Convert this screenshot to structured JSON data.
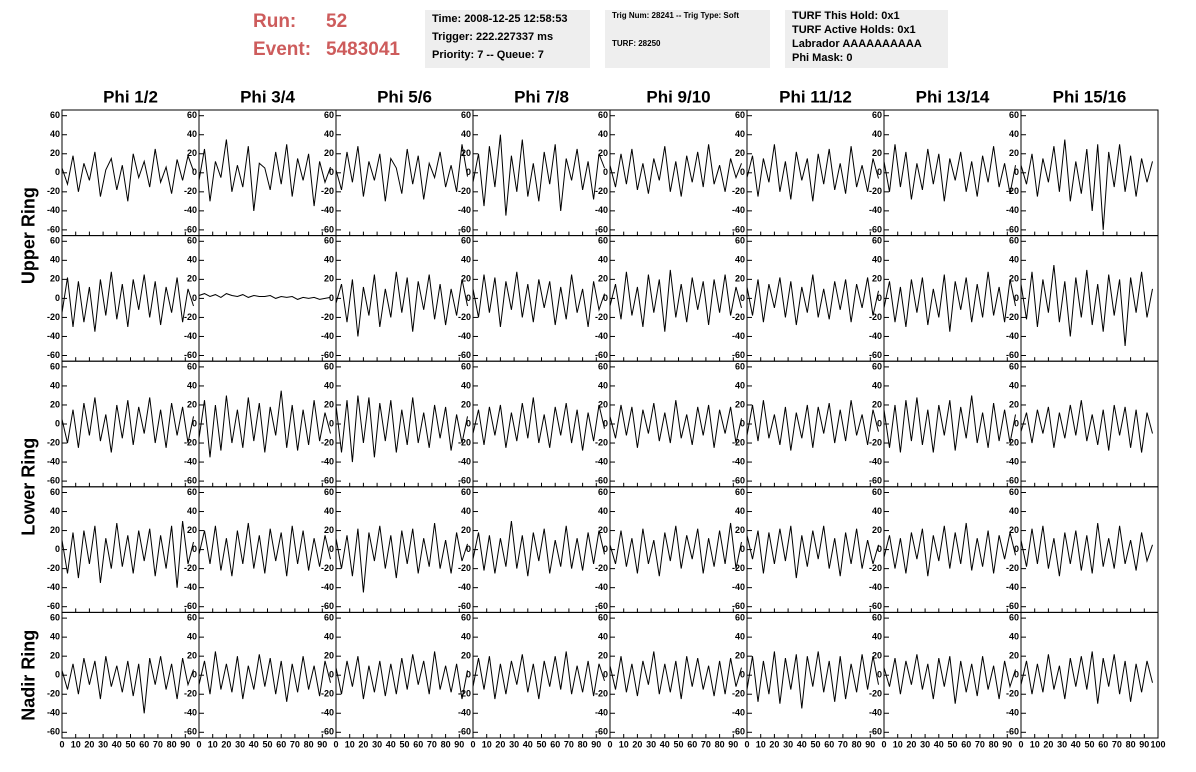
{
  "header": {
    "run_label": "Run:",
    "run": 52,
    "event_label": "Event:",
    "event": 5483041
  },
  "info": [
    [
      "Time: 2008-12-25 12:58:53",
      "Trigger: 222.227337 ms",
      "Priority: 7 -- Queue: 7"
    ],
    [
      "Trig Num: 28241 -- Trig Type: Soft",
      "TURF: 28250"
    ],
    [
      "TURF This Hold: 0x1",
      "TURF Active Holds: 0x1",
      "Labrador AAAAAAAAAA",
      "Phi Mask: 0"
    ]
  ],
  "chart_data": {
    "type": "line",
    "color": "#000000",
    "columns": [
      "Phi 1/2",
      "Phi 3/4",
      "Phi 5/6",
      "Phi 7/8",
      "Phi 9/10",
      "Phi 11/12",
      "Phi 13/14",
      "Phi 15/16"
    ],
    "rows": [
      "Upper Ring",
      "Lower Ring",
      "Nadir Ring"
    ],
    "xlim": [
      0,
      100
    ],
    "ylim": [
      -66,
      66
    ],
    "xticks": [
      0,
      10,
      20,
      30,
      40,
      50,
      60,
      70,
      80,
      90,
      100
    ],
    "yticks": [
      -60,
      -40,
      -20,
      0,
      20,
      40,
      60
    ],
    "x": [
      0,
      4,
      8,
      12,
      16,
      20,
      24,
      28,
      32,
      36,
      40,
      44,
      48,
      52,
      56,
      60,
      64,
      68,
      72,
      76,
      80,
      84,
      88,
      92,
      96
    ],
    "panels": [
      {
        "values": [
          5,
          -12,
          18,
          -20,
          10,
          -8,
          22,
          -25,
          3,
          15,
          -18,
          8,
          -30,
          20,
          -5,
          12,
          -15,
          25,
          -10,
          6,
          -22,
          14,
          -8,
          18,
          2
        ]
      },
      {
        "values": [
          -8,
          25,
          -30,
          12,
          -5,
          35,
          -20,
          8,
          -15,
          28,
          -40,
          10,
          5,
          -18,
          22,
          -12,
          30,
          -25,
          15,
          -8,
          20,
          -35,
          12,
          -10,
          6
        ]
      },
      {
        "values": [
          3,
          -18,
          22,
          -10,
          28,
          -25,
          12,
          -8,
          20,
          -30,
          15,
          5,
          -22,
          25,
          -12,
          18,
          -28,
          10,
          -5,
          22,
          -15,
          8,
          -20,
          30,
          -4
        ]
      },
      {
        "values": [
          -10,
          20,
          -35,
          28,
          -15,
          40,
          -45,
          18,
          -20,
          35,
          -25,
          10,
          -30,
          22,
          -12,
          30,
          -40,
          15,
          -8,
          25,
          -18,
          12,
          -28,
          20,
          5
        ]
      },
      {
        "values": [
          8,
          -15,
          20,
          -12,
          25,
          -18,
          10,
          -22,
          15,
          -8,
          28,
          -20,
          12,
          -25,
          18,
          -10,
          22,
          -15,
          30,
          -12,
          8,
          -20,
          15,
          -5,
          10
        ]
      },
      {
        "values": [
          -5,
          18,
          -25,
          15,
          -10,
          30,
          -20,
          12,
          -28,
          22,
          -8,
          15,
          -30,
          20,
          -12,
          25,
          -18,
          10,
          -22,
          28,
          -15,
          8,
          -20,
          15,
          -6
        ]
      },
      {
        "values": [
          12,
          -20,
          30,
          -15,
          22,
          -28,
          10,
          -18,
          25,
          -12,
          20,
          -30,
          15,
          -8,
          22,
          -20,
          12,
          -25,
          18,
          -10,
          28,
          -15,
          10,
          -22,
          8
        ]
      },
      {
        "values": [
          8,
          -12,
          20,
          -25,
          15,
          -10,
          28,
          -20,
          35,
          -30,
          12,
          -22,
          25,
          -40,
          30,
          -60,
          22,
          -15,
          30,
          -20,
          18,
          -25,
          15,
          -10,
          12
        ]
      },
      {
        "values": [
          -15,
          22,
          -30,
          18,
          -25,
          12,
          -35,
          20,
          -18,
          28,
          -22,
          15,
          -30,
          20,
          -12,
          25,
          -20,
          18,
          -28,
          12,
          -15,
          22,
          -25,
          10,
          -8
        ]
      },
      {
        "values": [
          3,
          5,
          2,
          4,
          1,
          5,
          3,
          2,
          4,
          1,
          3,
          2,
          2,
          3,
          0,
          2,
          1,
          2,
          -1,
          1,
          0,
          1,
          -1,
          0,
          1
        ]
      },
      {
        "values": [
          -5,
          15,
          -25,
          20,
          -40,
          12,
          -18,
          25,
          -30,
          10,
          -20,
          28,
          -15,
          22,
          -35,
          18,
          -12,
          25,
          -22,
          15,
          -28,
          10,
          -18,
          20,
          -8
        ]
      },
      {
        "values": [
          10,
          -20,
          25,
          -15,
          22,
          -30,
          18,
          -12,
          28,
          -20,
          15,
          -25,
          20,
          -10,
          18,
          -28,
          12,
          -22,
          25,
          -15,
          10,
          -30,
          18,
          -12,
          5
        ]
      },
      {
        "values": [
          -8,
          15,
          -22,
          28,
          -18,
          12,
          -30,
          25,
          -15,
          20,
          -35,
          30,
          -20,
          15,
          -25,
          22,
          -12,
          18,
          -28,
          20,
          -15,
          25,
          -18,
          12,
          -10
        ]
      },
      {
        "values": [
          12,
          -18,
          20,
          -25,
          15,
          -10,
          22,
          -20,
          18,
          -28,
          12,
          -15,
          25,
          -20,
          10,
          -22,
          18,
          -12,
          20,
          -25,
          15,
          -10,
          22,
          -18,
          8
        ]
      },
      {
        "values": [
          -10,
          18,
          -25,
          12,
          -30,
          20,
          -15,
          22,
          -28,
          10,
          -20,
          25,
          -35,
          18,
          -12,
          22,
          -25,
          15,
          -20,
          28,
          -18,
          12,
          -25,
          20,
          -8
        ]
      },
      {
        "values": [
          15,
          -22,
          28,
          -30,
          20,
          -15,
          35,
          -25,
          18,
          -40,
          22,
          -20,
          30,
          -28,
          15,
          -35,
          25,
          -18,
          20,
          -50,
          22,
          -15,
          28,
          -20,
          10
        ]
      },
      {
        "values": [
          5,
          -20,
          15,
          -25,
          22,
          -12,
          28,
          -18,
          10,
          -30,
          20,
          -15,
          25,
          -22,
          18,
          -10,
          28,
          -20,
          15,
          -25,
          22,
          -12,
          18,
          -20,
          8
        ]
      },
      {
        "values": [
          -15,
          25,
          -35,
          20,
          -28,
          30,
          -20,
          15,
          -25,
          28,
          -18,
          22,
          -30,
          18,
          -12,
          35,
          -25,
          20,
          -28,
          15,
          -22,
          25,
          -18,
          12,
          -10
        ]
      },
      {
        "values": [
          20,
          -30,
          25,
          -40,
          30,
          -20,
          28,
          -35,
          22,
          -18,
          25,
          -30,
          15,
          -22,
          28,
          -20,
          12,
          -25,
          20,
          -15,
          18,
          -28,
          10,
          -20,
          8
        ]
      },
      {
        "values": [
          -10,
          15,
          -22,
          18,
          -12,
          20,
          -25,
          12,
          -18,
          22,
          -15,
          28,
          -20,
          10,
          -25,
          18,
          -12,
          22,
          -20,
          15,
          -28,
          12,
          -18,
          20,
          -5
        ]
      },
      {
        "values": [
          8,
          -15,
          20,
          -12,
          18,
          -25,
          15,
          -10,
          22,
          -18,
          12,
          -20,
          25,
          -15,
          10,
          -22,
          18,
          -12,
          20,
          -25,
          15,
          -10,
          18,
          -20,
          6
        ]
      },
      {
        "values": [
          -12,
          20,
          -18,
          25,
          -15,
          10,
          -22,
          18,
          -28,
          12,
          -15,
          20,
          -25,
          18,
          -10,
          22,
          -20,
          15,
          -18,
          25,
          -12,
          10,
          -22,
          15,
          -8
        ]
      },
      {
        "values": [
          15,
          -25,
          20,
          -30,
          25,
          -18,
          28,
          -22,
          15,
          -30,
          20,
          -12,
          25,
          -28,
          18,
          -15,
          30,
          -20,
          12,
          -25,
          22,
          -18,
          15,
          -20,
          10
        ]
      },
      {
        "values": [
          -8,
          12,
          -20,
          15,
          -10,
          18,
          -25,
          12,
          -15,
          20,
          -12,
          25,
          -18,
          10,
          -22,
          15,
          -28,
          20,
          -12,
          18,
          -25,
          15,
          -30,
          12,
          -10
        ]
      },
      {
        "values": [
          10,
          -25,
          18,
          -30,
          20,
          -15,
          25,
          -35,
          12,
          -20,
          28,
          -18,
          15,
          -25,
          20,
          -12,
          22,
          -28,
          15,
          -20,
          25,
          -40,
          30,
          -15,
          8
        ]
      },
      {
        "values": [
          -5,
          20,
          -15,
          25,
          -22,
          12,
          -28,
          20,
          -15,
          28,
          -20,
          15,
          -25,
          22,
          -12,
          18,
          -28,
          25,
          -15,
          20,
          -22,
          12,
          -18,
          15,
          -10
        ]
      },
      {
        "values": [
          12,
          -20,
          15,
          -28,
          22,
          -45,
          18,
          -12,
          25,
          -20,
          15,
          -30,
          20,
          -15,
          22,
          -25,
          12,
          -18,
          28,
          -20,
          10,
          -25,
          18,
          -12,
          6
        ]
      },
      {
        "values": [
          -10,
          18,
          -22,
          15,
          -25,
          12,
          -18,
          30,
          -20,
          15,
          -28,
          18,
          -12,
          22,
          -25,
          10,
          -18,
          25,
          -20,
          12,
          -22,
          18,
          -15,
          20,
          -5
        ]
      },
      {
        "values": [
          5,
          -15,
          20,
          -18,
          12,
          -25,
          22,
          -15,
          10,
          -28,
          18,
          -12,
          25,
          -20,
          15,
          -10,
          22,
          -25,
          12,
          -18,
          20,
          -15,
          28,
          -20,
          8
        ]
      },
      {
        "values": [
          15,
          -10,
          20,
          -25,
          18,
          -15,
          22,
          -12,
          25,
          -30,
          15,
          -18,
          20,
          -10,
          25,
          -20,
          12,
          -28,
          18,
          -15,
          22,
          -20,
          10,
          -15,
          5
        ]
      },
      {
        "values": [
          -8,
          15,
          -20,
          12,
          -25,
          18,
          -10,
          22,
          -28,
          15,
          -12,
          25,
          -20,
          18,
          -15,
          28,
          -22,
          12,
          -18,
          20,
          -25,
          15,
          -10,
          18,
          -6
        ]
      },
      {
        "values": [
          10,
          -18,
          22,
          -15,
          25,
          -20,
          12,
          -28,
          18,
          -15,
          20,
          -22,
          15,
          -25,
          28,
          -18,
          12,
          -20,
          25,
          -15,
          10,
          -22,
          18,
          -12,
          5
        ]
      },
      {
        "values": [
          5,
          -15,
          12,
          -20,
          18,
          -10,
          15,
          -25,
          20,
          -12,
          10,
          -18,
          15,
          -22,
          12,
          -40,
          18,
          -10,
          20,
          -15,
          12,
          -25,
          18,
          -10,
          6
        ]
      },
      {
        "values": [
          -10,
          15,
          -20,
          25,
          -15,
          12,
          -18,
          20,
          -25,
          10,
          -15,
          22,
          -12,
          18,
          -20,
          15,
          -28,
          12,
          -18,
          20,
          -15,
          10,
          -22,
          15,
          -8
        ]
      },
      {
        "values": [
          8,
          -20,
          15,
          -12,
          20,
          -25,
          10,
          -18,
          15,
          -22,
          12,
          -20,
          18,
          -15,
          22,
          -10,
          15,
          -20,
          25,
          -15,
          10,
          -18,
          12,
          -25,
          5
        ]
      },
      {
        "values": [
          -12,
          18,
          -15,
          20,
          -25,
          12,
          -20,
          15,
          -10,
          22,
          -18,
          12,
          -25,
          15,
          -12,
          20,
          -15,
          25,
          -20,
          10,
          -18,
          15,
          -22,
          12,
          -6
        ]
      },
      {
        "values": [
          10,
          -15,
          20,
          -18,
          12,
          -22,
          15,
          -10,
          25,
          -20,
          12,
          -18,
          15,
          -25,
          20,
          -12,
          18,
          -15,
          10,
          -22,
          15,
          -20,
          18,
          -12,
          8
        ]
      },
      {
        "values": [
          -15,
          20,
          -28,
          15,
          -20,
          25,
          -30,
          18,
          -15,
          22,
          -35,
          20,
          -12,
          25,
          -18,
          15,
          -28,
          20,
          -25,
          12,
          -18,
          22,
          -15,
          20,
          -10
        ]
      },
      {
        "values": [
          8,
          -12,
          18,
          -20,
          15,
          -10,
          22,
          -15,
          12,
          -25,
          18,
          -12,
          20,
          -30,
          15,
          -18,
          12,
          -22,
          20,
          -15,
          10,
          -25,
          15,
          -12,
          6
        ]
      },
      {
        "values": [
          -10,
          15,
          -20,
          12,
          -18,
          22,
          -15,
          10,
          -25,
          18,
          -12,
          20,
          -15,
          25,
          -30,
          18,
          -12,
          22,
          -20,
          15,
          -28,
          12,
          -18,
          15,
          -8
        ]
      }
    ]
  }
}
